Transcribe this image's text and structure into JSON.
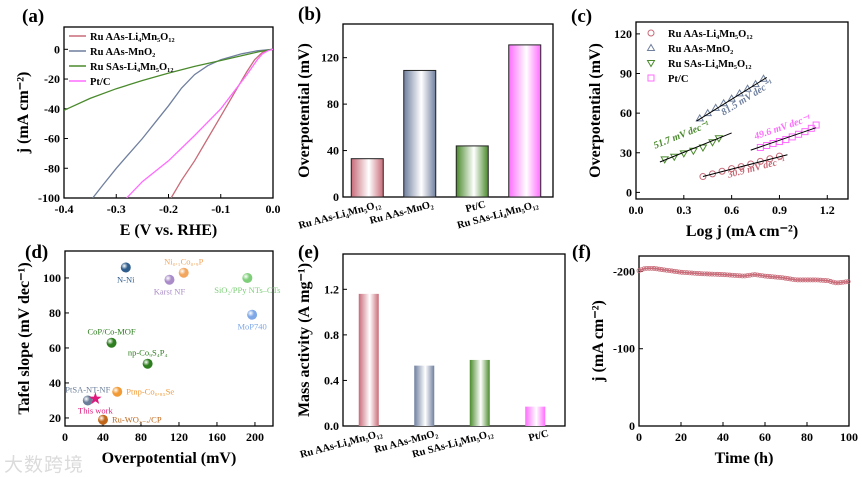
{
  "colors": {
    "ru_aas_limno": "#c86b78",
    "ru_aas_mno2": "#6f7f9e",
    "ru_sas_limno": "#4a8a2c",
    "ptc": "#ff6cff",
    "axis": "#000000",
    "fitline": "#000000"
  },
  "watermark": "大数跨境",
  "chart_data": [
    {
      "panel": "(a)",
      "type": "line",
      "xlabel": "E (V vs. RHE)",
      "ylabel": "j (mA cm⁻²)",
      "xlim": [
        -0.4,
        0.0
      ],
      "ylim": [
        -100,
        15
      ],
      "xticks": [
        "-0.4",
        "-0.3",
        "-0.2",
        "-0.1",
        "0.0"
      ],
      "xtick_values": [
        -0.4,
        -0.3,
        -0.2,
        -0.1,
        0.0
      ],
      "yticks": [
        "0",
        "-20",
        "-40",
        "-60",
        "-80",
        "-100"
      ],
      "ytick_values": [
        0,
        -20,
        -40,
        -60,
        -80,
        -100
      ],
      "legend": "top-left",
      "series": [
        {
          "name": "Ru AAs-Li₄Mn₅O₁₂",
          "color_key": "ru_aas_limno",
          "points": [
            [
              0,
              0
            ],
            [
              -0.01,
              -0.5
            ],
            [
              -0.02,
              -2
            ],
            [
              -0.035,
              -7
            ],
            [
              -0.05,
              -15
            ],
            [
              -0.075,
              -30
            ],
            [
              -0.1,
              -45
            ],
            [
              -0.125,
              -60
            ],
            [
              -0.15,
              -75
            ],
            [
              -0.175,
              -88
            ],
            [
              -0.195,
              -100
            ]
          ]
        },
        {
          "name": "Ru AAs-MnO₂",
          "color_key": "ru_aas_mno2",
          "points": [
            [
              0,
              0
            ],
            [
              -0.03,
              -1
            ],
            [
              -0.06,
              -3
            ],
            [
              -0.1,
              -7
            ],
            [
              -0.125,
              -11
            ],
            [
              -0.15,
              -17
            ],
            [
              -0.175,
              -26
            ],
            [
              -0.2,
              -38
            ],
            [
              -0.225,
              -49
            ],
            [
              -0.25,
              -60
            ],
            [
              -0.275,
              -70
            ],
            [
              -0.3,
              -80
            ],
            [
              -0.325,
              -91
            ],
            [
              -0.345,
              -100
            ]
          ]
        },
        {
          "name": "Ru SAs-Li₄Mn₅O₁₂",
          "color_key": "ru_sas_limno",
          "points": [
            [
              0,
              0
            ],
            [
              -0.025,
              -1.5
            ],
            [
              -0.05,
              -3.5
            ],
            [
              -0.1,
              -7.5
            ],
            [
              -0.15,
              -11.5
            ],
            [
              -0.2,
              -16
            ],
            [
              -0.25,
              -21
            ],
            [
              -0.3,
              -26.5
            ],
            [
              -0.35,
              -33
            ],
            [
              -0.4,
              -41
            ]
          ]
        },
        {
          "name": "Pt/C",
          "color_key": "ptc",
          "points": [
            [
              0,
              0
            ],
            [
              -0.01,
              -1
            ],
            [
              -0.02,
              -3
            ],
            [
              -0.03,
              -7
            ],
            [
              -0.05,
              -17
            ],
            [
              -0.1,
              -40
            ],
            [
              -0.15,
              -58
            ],
            [
              -0.2,
              -75
            ],
            [
              -0.25,
              -89
            ],
            [
              -0.28,
              -100
            ]
          ]
        }
      ]
    },
    {
      "panel": "(b)",
      "type": "bar",
      "ylabel": "Overpotential (mV)",
      "ylim": [
        0,
        149
      ],
      "yticks": [
        "0",
        "40",
        "80",
        "120"
      ],
      "ytick_values": [
        0,
        40,
        80,
        120
      ],
      "categories": [
        "Ru AAs-Li₄Mn₅O₁₂",
        "Ru AAs-MnO₂",
        "Pt/C",
        "Ru SAs-Li₄Mn₅O₁₂"
      ],
      "color_keys": [
        "ru_aas_limno",
        "ru_aas_mno2",
        "ru_sas_limno",
        "ptc"
      ],
      "values": [
        33,
        109,
        44,
        131
      ]
    },
    {
      "panel": "(c)",
      "type": "scatter",
      "xlabel": "Log j (mA cm⁻²)",
      "ylabel": "Overpotential (mV)",
      "xlim": [
        0,
        1.33
      ],
      "ylim": [
        -5,
        129
      ],
      "xticks": [
        "0.0",
        "0.3",
        "0.6",
        "0.9",
        "1.2"
      ],
      "xtick_values": [
        0,
        0.3,
        0.6,
        0.9,
        1.2
      ],
      "yticks": [
        "0",
        "30",
        "60",
        "90",
        "120"
      ],
      "ytick_values": [
        0,
        30,
        60,
        90,
        120
      ],
      "legend": "top-left",
      "series": [
        {
          "name": "Ru AAs-Li₄Mn₅O₁₂",
          "marker": "circle",
          "color_key": "ru_aas_limno",
          "slope_label": "30.9 mV dec⁻¹",
          "fit": [
            [
              0.42,
              12
            ],
            [
              0.95,
              28.5
            ]
          ],
          "label_at": [
            0.58,
            11
          ],
          "x": [
            0.42,
            0.48,
            0.54,
            0.6,
            0.66,
            0.72,
            0.78,
            0.84,
            0.9
          ],
          "y": [
            12,
            14,
            16,
            18,
            19.5,
            21.5,
            23.5,
            25.5,
            27.5
          ]
        },
        {
          "name": "Ru AAs-MnO₂",
          "marker": "triangle-up",
          "color_key": "ru_aas_mno2",
          "slope_label": "81.5 mV dec⁻¹",
          "fit": [
            [
              0.38,
              54
            ],
            [
              0.82,
              87
            ]
          ],
          "label_at": [
            0.55,
            58
          ],
          "x": [
            0.4,
            0.45,
            0.5,
            0.55,
            0.6,
            0.65,
            0.7,
            0.75,
            0.8
          ],
          "y": [
            56,
            60,
            64,
            67.5,
            71,
            75,
            78.5,
            82,
            86
          ]
        },
        {
          "name": "Ru SAs-Li₄Mn₅O₁₂",
          "marker": "triangle-down",
          "color_key": "ru_sas_limno",
          "slope_label": "51.7 mV dec⁻¹",
          "fit": [
            [
              0.15,
              23
            ],
            [
              0.6,
              45
            ]
          ],
          "label_at": [
            0.12,
            33
          ],
          "x": [
            0.18,
            0.24,
            0.3,
            0.36,
            0.42,
            0.48,
            0.52
          ],
          "y": [
            25,
            27,
            29.5,
            31.5,
            34,
            38,
            41
          ]
        },
        {
          "name": "Pt/C",
          "marker": "square",
          "color_key": "ptc",
          "slope_label": "49.6 mV dec⁻¹",
          "fit": [
            [
              0.72,
              32
            ],
            [
              1.13,
              49
            ]
          ],
          "label_at": [
            0.75,
            40
          ],
          "x": [
            0.78,
            0.82,
            0.86,
            0.9,
            0.94,
            0.98,
            1.02,
            1.06,
            1.1,
            1.13
          ],
          "y": [
            34,
            35.5,
            37,
            38.5,
            40,
            42,
            44,
            46,
            48.5,
            51
          ]
        }
      ]
    },
    {
      "panel": "(d)",
      "type": "scatter",
      "xlabel": "Overpotential (mV)",
      "ylabel": "Tafel slope (mV dec⁻¹)",
      "xlim": [
        0,
        219
      ],
      "ylim": [
        15.4,
        115.4
      ],
      "xticks": [
        "0",
        "40",
        "80",
        "120",
        "160",
        "200"
      ],
      "xtick_values": [
        0,
        40,
        80,
        120,
        160,
        200
      ],
      "yticks": [
        "20",
        "40",
        "60",
        "80",
        "100"
      ],
      "ytick_values": [
        20,
        40,
        60,
        80,
        100
      ],
      "points": [
        {
          "label": "N-Ni",
          "x": 64,
          "y": 106,
          "color": "#2f5d8c",
          "label_pos": "below"
        },
        {
          "label": "Ni₀.₁Co₀.₉P",
          "x": 125,
          "y": 103,
          "color": "#f2a65e",
          "label_pos": "above"
        },
        {
          "label": "Karst NF",
          "x": 110,
          "y": 99,
          "color": "#a98cc8",
          "label_pos": "below"
        },
        {
          "label": "SiO₂/PPy NTs–CTs",
          "x": 192,
          "y": 100,
          "color": "#7fcf7a",
          "label_pos": "below"
        },
        {
          "label": "MoP740",
          "x": 197,
          "y": 79,
          "color": "#7fa8e6",
          "label_pos": "below"
        },
        {
          "label": "CoP/Co-MOF",
          "x": 49,
          "y": 63,
          "color": "#2e7d1f",
          "label_pos": "above"
        },
        {
          "label": "np-Co₉S₄P₄",
          "x": 87,
          "y": 51,
          "color": "#2e7d1f",
          "label_pos": "above"
        },
        {
          "label": "PtSA-NT-NF",
          "x": 24,
          "y": 30,
          "color": "#6a7d99",
          "label_pos": "above"
        },
        {
          "label": "Ptnp-Co₀.₈₅Se",
          "x": 55,
          "y": 35,
          "color": "#f29a35",
          "label_pos": "right"
        },
        {
          "label": "Ru-WO₃₋ₓ/CP",
          "x": 40,
          "y": 19,
          "color": "#c0661a",
          "label_pos": "right"
        },
        {
          "label": "This work",
          "x": 32,
          "y": 31,
          "color": "#e0197d",
          "label_pos": "below",
          "marker": "star"
        }
      ]
    },
    {
      "panel": "(e)",
      "type": "bar",
      "ylabel": "Mass activity (A mg⁻¹)",
      "ylim": [
        0,
        1.51
      ],
      "yticks": [
        "0.0",
        "0.4",
        "0.8",
        "1.2"
      ],
      "ytick_values": [
        0,
        0.4,
        0.8,
        1.2
      ],
      "categories": [
        "Ru AAs-Li₄Mn₅O₁₂",
        "Ru AAs-MnO₂",
        "Ru SAs-Li₄Mn₅O₁₂",
        "Pt/C"
      ],
      "color_keys": [
        "ru_aas_limno",
        "ru_aas_mno2",
        "ru_sas_limno",
        "ptc"
      ],
      "values": [
        1.16,
        0.53,
        0.58,
        0.17
      ]
    },
    {
      "panel": "(f)",
      "type": "line",
      "xlabel": "Time (h)",
      "ylabel": "j (mA cm⁻²)",
      "xlim": [
        0,
        100
      ],
      "ylim": [
        0,
        -220
      ],
      "xticks": [
        "0",
        "20",
        "40",
        "60",
        "80",
        "100"
      ],
      "xtick_values": [
        0,
        20,
        40,
        60,
        80,
        100
      ],
      "yticks": [
        "0",
        "-100",
        "-200"
      ],
      "ytick_values": [
        0,
        -100,
        -200
      ],
      "color_key": "ru_aas_limno",
      "points": [
        [
          0,
          -201
        ],
        [
          3,
          -204
        ],
        [
          7,
          -204
        ],
        [
          12,
          -202
        ],
        [
          20,
          -199
        ],
        [
          30,
          -197
        ],
        [
          40,
          -196
        ],
        [
          50,
          -194
        ],
        [
          55,
          -196
        ],
        [
          60,
          -194
        ],
        [
          68,
          -192
        ],
        [
          75,
          -189
        ],
        [
          85,
          -189
        ],
        [
          90,
          -188
        ],
        [
          94,
          -185
        ],
        [
          100,
          -187
        ]
      ]
    }
  ]
}
